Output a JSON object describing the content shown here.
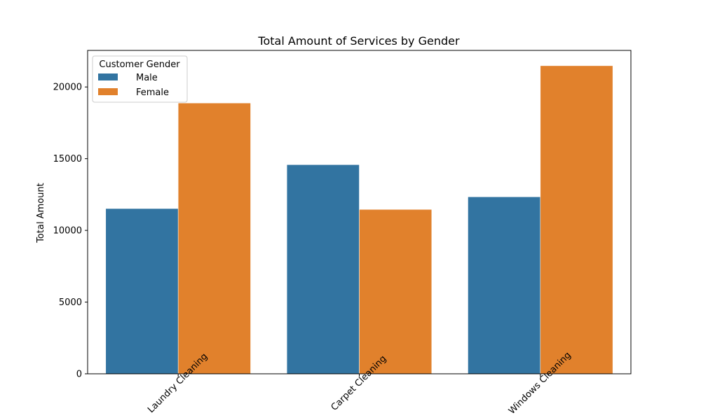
{
  "chart_data": {
    "type": "bar",
    "title": "Total Amount of Services by Gender",
    "xlabel": "",
    "ylabel": "Total Amount",
    "categories": [
      "Laundry Cleaning",
      "Carpet Cleaning",
      "Windows Cleaning"
    ],
    "series": [
      {
        "name": "Male",
        "color": "#3274a1",
        "values": [
          11520,
          14580,
          12340
        ]
      },
      {
        "name": "Female",
        "color": "#e1812c",
        "values": [
          18880,
          11460,
          21480
        ]
      }
    ],
    "ylim": [
      0,
      22550
    ],
    "yticks": [
      0,
      5000,
      10000,
      15000,
      20000
    ],
    "legend": {
      "title": "Customer Gender",
      "placement": "top-left"
    },
    "grid": false,
    "x_tick_rotation": 45
  }
}
